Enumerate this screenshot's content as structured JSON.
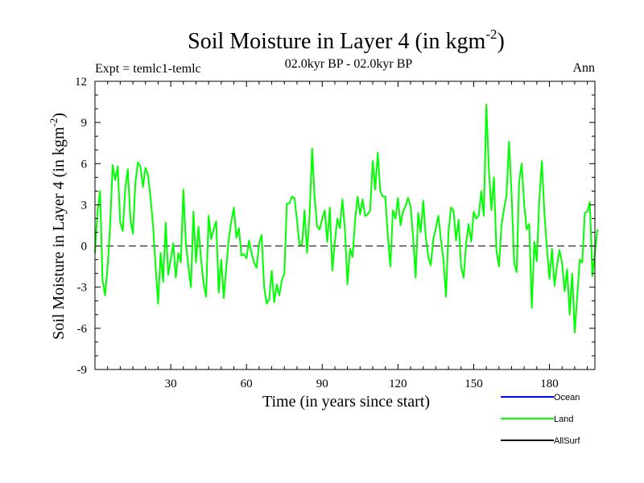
{
  "chart_data": {
    "type": "line",
    "title": "Soil Moisture in Layer 4 (in kgm",
    "title_sup": "-2",
    "title_close": ")",
    "subtitle": "02.0kyr BP - 02.0kyr BP",
    "left_annotation": "Expt = temlc1-temlc",
    "right_annotation": "Ann",
    "xlabel": "Time (in years since start)",
    "ylabel": "Soil Moisture in Layer 4 (in kgm",
    "ylabel_sup": "-2",
    "ylabel_close": ")",
    "xlim": [
      0,
      198
    ],
    "ylim": [
      -9,
      12
    ],
    "x_ticks": [
      30,
      60,
      90,
      120,
      150,
      180
    ],
    "x_tick_labels": [
      "30",
      "60",
      "90",
      "120",
      "150",
      "180"
    ],
    "y_ticks": [
      -9,
      -6,
      -3,
      0,
      3,
      6,
      9,
      12
    ],
    "y_tick_labels": [
      "-9",
      "-6",
      "-3",
      "0",
      "3",
      "6",
      "9",
      "12"
    ],
    "zero_line": 0,
    "legend": [
      {
        "name": "Ocean",
        "color": "#0000ff"
      },
      {
        "name": "Land",
        "color": "#00ff00"
      },
      {
        "name": "AllSurf",
        "color": "#000000"
      }
    ],
    "series": [
      {
        "name": "Land",
        "color": "#00ff00",
        "x_start": 0,
        "x_step": 1,
        "values": [
          -0.5,
          2.5,
          4.0,
          -2.5,
          -3.6,
          -1.5,
          1.5,
          5.9,
          4.8,
          5.8,
          1.7,
          1.1,
          4.2,
          5.6,
          2.0,
          0.9,
          4.6,
          6.1,
          5.8,
          4.3,
          5.7,
          5.2,
          3.5,
          1.5,
          -1.5,
          -4.2,
          -0.5,
          -2.6,
          1.7,
          -2.1,
          -1.0,
          0.2,
          -2.3,
          -0.5,
          -1.2,
          4.1,
          0.2,
          -1.5,
          -3.0,
          2.5,
          -1.2,
          1.4,
          -1.0,
          -2.7,
          -3.7,
          2.2,
          0.5,
          1.2,
          1.8,
          -3.4,
          -1.0,
          -3.8,
          -1.6,
          0.5,
          1.8,
          2.8,
          0.6,
          1.3,
          -0.7,
          -0.6,
          -0.9,
          0.4,
          -0.5,
          -1.2,
          -1.6,
          0.2,
          0.8,
          -3.0,
          -4.2,
          -3.9,
          -1.8,
          -4.1,
          -2.8,
          -3.6,
          -2.5,
          -2.0,
          3.1,
          3.1,
          3.6,
          3.5,
          1.9,
          0.1,
          0.1,
          2.6,
          -0.5,
          2.3,
          7.1,
          3.5,
          1.4,
          1.2,
          2.0,
          2.6,
          0.3,
          2.8,
          -1.8,
          0.3,
          2.0,
          1.3,
          3.4,
          1.2,
          -2.8,
          -0.2,
          -0.8,
          1.8,
          3.6,
          2.3,
          3.4,
          2.2,
          2.3,
          2.6,
          6.2,
          4.1,
          6.8,
          4.0,
          3.6,
          3.6,
          0.7,
          -1.5,
          2.6,
          2.0,
          3.5,
          1.5,
          2.5,
          2.9,
          3.5,
          2.9,
          0.6,
          -2.3,
          2.4,
          1.0,
          3.3,
          0.7,
          -0.8,
          -1.4,
          0.5,
          1.3,
          2.2,
          0.5,
          -1.0,
          -3.7,
          1.0,
          2.8,
          2.6,
          0.4,
          1.9,
          -1.5,
          -2.3,
          0.2,
          1.6,
          0.3,
          2.5,
          2.0,
          2.2,
          4.0,
          2.2,
          10.3,
          5.6,
          2.6,
          5.0,
          -0.3,
          -1.5,
          1.5,
          2.7,
          3.7,
          7.6,
          3.8,
          -1.2,
          -1.9,
          4.7,
          6.0,
          3.0,
          1.2,
          1.6,
          -4.5,
          0.3,
          -1.1,
          3.4,
          6.2,
          2.4,
          -0.2,
          -2.4,
          -0.2,
          -2.9,
          -1.4,
          -0.3,
          -1.2,
          -3.3,
          -1.7,
          -5.0,
          -2.0,
          -6.3,
          -3.7,
          -1.0,
          -1.2,
          2.4,
          2.5,
          3.2,
          -2.2,
          -0.5,
          1.2
        ]
      }
    ]
  }
}
